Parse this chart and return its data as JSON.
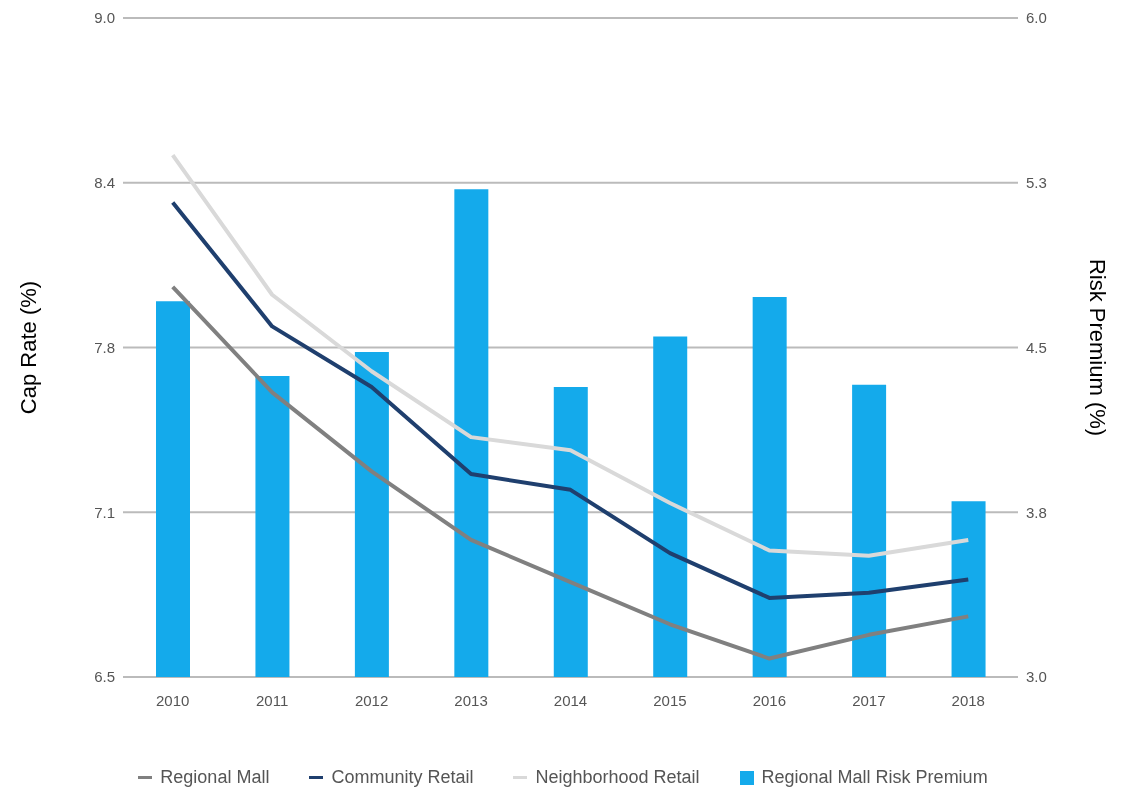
{
  "chart_data": {
    "type": "line",
    "ylabel": "Cap Rate (%)",
    "y2label": "Risk Premium (%)",
    "categories": [
      "2010",
      "2011",
      "2012",
      "2013",
      "2014",
      "2015",
      "2016",
      "2017",
      "2018"
    ],
    "series": [
      {
        "name": "Regional Mall",
        "color": "#808080",
        "values": [
          7.98,
          7.58,
          7.28,
          7.02,
          6.86,
          6.7,
          6.57,
          6.66,
          6.73
        ]
      },
      {
        "name": "Community Retail",
        "color": "#1f3f6e",
        "values": [
          8.3,
          7.83,
          7.6,
          7.27,
          7.21,
          6.97,
          6.8,
          6.82,
          6.87
        ]
      },
      {
        "name": "Neighborhood Retail",
        "color": "#d9d9d9",
        "values": [
          8.48,
          7.95,
          7.66,
          7.41,
          7.36,
          7.16,
          6.98,
          6.96,
          7.02
        ]
      },
      {
        "name": "Regional Mall Risk Premium",
        "type": "bar",
        "axis": "y2",
        "color": "#14aaeb",
        "values": [
          4.71,
          4.37,
          4.48,
          5.22,
          4.32,
          4.55,
          4.73,
          4.33,
          3.8
        ]
      }
    ],
    "ylim": [
      6.5,
      9.0
    ],
    "yticks": [
      6.5,
      {
        "value": 7.125,
        "label": "7.1"
      },
      {
        "value": 7.75,
        "label": "7.8"
      },
      {
        "value": 8.375,
        "label": "8.4"
      },
      {
        "value": 9,
        "label": "9.0"
      }
    ],
    "y2lim": [
      3.0,
      6.0
    ],
    "y2ticks": [
      {
        "value": 3,
        "label": "3.0"
      },
      {
        "value": 3.75,
        "label": "3.8"
      },
      4.5,
      {
        "value": 5.25,
        "label": "5.3"
      },
      {
        "value": 6,
        "label": "6.0"
      }
    ],
    "grid": "y",
    "legend": "bottom",
    "marker": "none",
    "line_style": "solid"
  }
}
